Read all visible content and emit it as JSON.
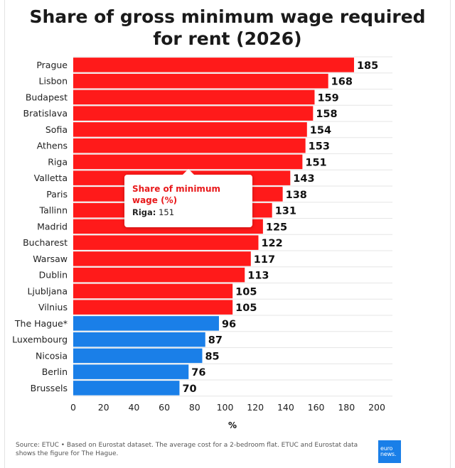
{
  "title": "Share of gross minimum wage required for rent (2026)",
  "chart_data": {
    "type": "bar",
    "orientation": "horizontal",
    "categories": [
      "Prague",
      "Lisbon",
      "Budapest",
      "Bratislava",
      "Sofia",
      "Athens",
      "Riga",
      "Valletta",
      "Paris",
      "Tallinn",
      "Madrid",
      "Bucharest",
      "Warsaw",
      "Dublin",
      "Ljubljana",
      "Vilnius",
      "The Hague*",
      "Luxembourg",
      "Nicosia",
      "Berlin",
      "Brussels"
    ],
    "values": [
      185,
      168,
      159,
      158,
      154,
      153,
      151,
      143,
      138,
      131,
      125,
      122,
      117,
      113,
      105,
      105,
      96,
      87,
      85,
      76,
      70
    ],
    "xlabel": "%",
    "xlim": [
      0,
      200
    ],
    "xticks": [
      0,
      20,
      40,
      60,
      80,
      100,
      120,
      140,
      160,
      180,
      200
    ],
    "grid": true,
    "colors": {
      "above_100": "#ff1a1a",
      "below_100": "#1a7fe8"
    }
  },
  "tooltip": {
    "title": "Share of minimum wage (%)",
    "city": "Riga",
    "value": "151"
  },
  "source": "Source: ETUC • Based on Eurostat dataset. The average cost for a 2-bedroom flat. ETUC and Eurostat data shows the figure for The Hague.",
  "logo": {
    "line1": "euro",
    "line2": "news."
  }
}
